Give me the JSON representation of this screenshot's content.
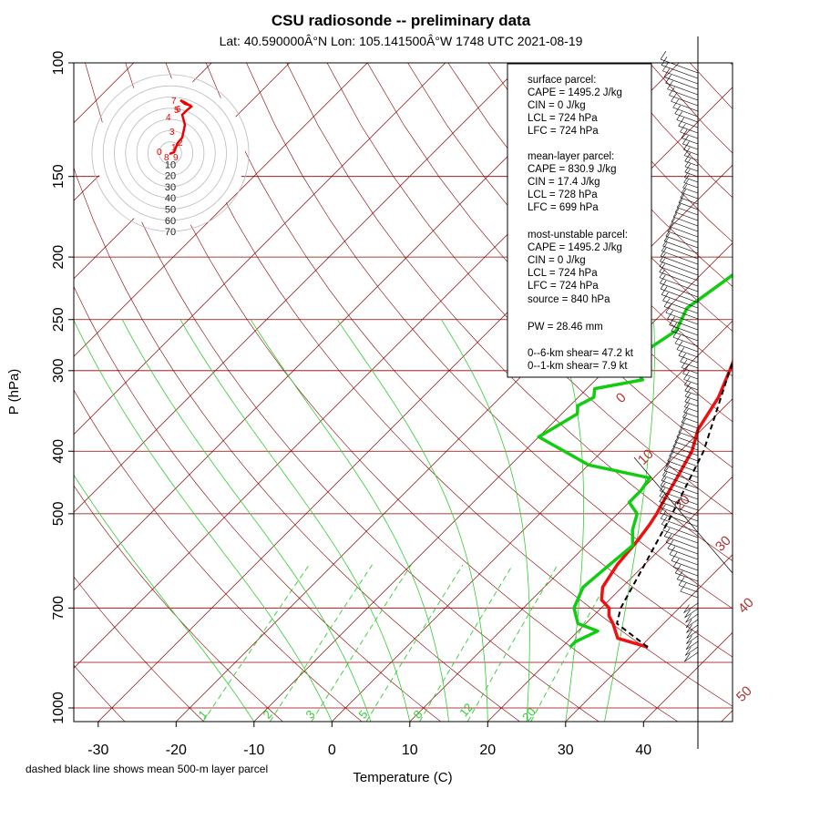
{
  "chart_data": {
    "type": "line",
    "title": "CSU radiosonde -- preliminary data",
    "subtitle": "Lat: 40.590000Â°N Lon: 105.141500Â°W    1748 UTC  2021-08-19",
    "xlabel": "Temperature (C)",
    "ylabel": "P (hPa)",
    "footnote": "dashed black line shows mean 500-m layer parcel",
    "x_ticks": [
      "-30",
      "-20",
      "-10",
      "0",
      "10",
      "20",
      "30",
      "40"
    ],
    "y_ticks": [
      "100",
      "150",
      "200",
      "250",
      "300",
      "400",
      "500",
      "700",
      "1000"
    ],
    "isotherm_labels": [
      "0",
      "10",
      "20",
      "30",
      "40",
      "50"
    ],
    "mixing_ratio_labels": [
      "1",
      "2",
      "3",
      "5",
      "8",
      "12",
      "20"
    ],
    "series": [
      {
        "name": "temperature",
        "color": "#ee1111",
        "points": [
          [
            805,
            31
          ],
          [
            780,
            26
          ],
          [
            740,
            23.5
          ],
          [
            720,
            22
          ],
          [
            700,
            21
          ],
          [
            680,
            19
          ],
          [
            650,
            17.5
          ],
          [
            600,
            16.5
          ],
          [
            550,
            16
          ],
          [
            520,
            15.5
          ],
          [
            500,
            15
          ],
          [
            470,
            14
          ],
          [
            440,
            13
          ],
          [
            400,
            11.5
          ],
          [
            370,
            9.5
          ],
          [
            330,
            8
          ],
          [
            300,
            6
          ],
          [
            280,
            4.5
          ],
          [
            250,
            3.5
          ],
          [
            220,
            3
          ],
          [
            200,
            3
          ],
          [
            180,
            2.5
          ],
          [
            160,
            2
          ],
          [
            145,
            2
          ],
          [
            130,
            2
          ],
          [
            120,
            2.5
          ],
          [
            115,
            4
          ],
          [
            108,
            5
          ],
          [
            103,
            6
          ],
          [
            100,
            7
          ]
        ]
      },
      {
        "name": "dewpoint",
        "color": "#11cc11",
        "points": [
          [
            805,
            21
          ],
          [
            790,
            21
          ],
          [
            760,
            22.5
          ],
          [
            740,
            19
          ],
          [
            700,
            16.5
          ],
          [
            650,
            15
          ],
          [
            600,
            15.5
          ],
          [
            560,
            16
          ],
          [
            530,
            14
          ],
          [
            500,
            12.5
          ],
          [
            480,
            10
          ],
          [
            460,
            10
          ],
          [
            440,
            9.5
          ],
          [
            420,
            0
          ],
          [
            380,
            -10
          ],
          [
            350,
            -8
          ],
          [
            340,
            -9
          ],
          [
            330,
            -8
          ],
          [
            320,
            -9
          ],
          [
            310,
            -4
          ],
          [
            300,
            -6
          ],
          [
            290,
            -8
          ],
          [
            260,
            -6
          ],
          [
            240,
            -7.5
          ],
          [
            200,
            -5
          ],
          [
            180,
            -3
          ],
          [
            150,
            4
          ],
          [
            130,
            10
          ],
          [
            115,
            15
          ],
          [
            108,
            16
          ],
          [
            100,
            18
          ]
        ]
      },
      {
        "name": "mean 500-m layer parcel",
        "color": "#000000",
        "points": [
          [
            805,
            31
          ],
          [
            740,
            24
          ],
          [
            700,
            22.5
          ],
          [
            600,
            20
          ],
          [
            500,
            17
          ],
          [
            400,
            13
          ],
          [
            300,
            6
          ],
          [
            250,
            2
          ],
          [
            200,
            -4
          ],
          [
            150,
            -12
          ],
          [
            145,
            -13
          ]
        ]
      }
    ],
    "wind_barbs": "present (right margin)"
  },
  "info_box": {
    "surface": [
      "surface parcel:",
      "CAPE = 1495.2 J/kg",
      "CIN = 0 J/kg",
      "LCL = 724 hPa",
      "LFC = 724 hPa"
    ],
    "mean_layer": [
      "mean-layer parcel:",
      "CAPE = 830.9 J/kg",
      "CIN = 17.4 J/kg",
      "LCL = 728 hPa",
      "LFC = 699 hPa"
    ],
    "most_unstable": [
      "most-unstable parcel:",
      "CAPE = 1495.2 J/kg",
      "CIN = 0 J/kg",
      "LCL = 724 hPa",
      "LFC = 724 hPa",
      "source = 840 hPa"
    ],
    "pw": "PW =  28.46 mm",
    "shear": [
      "0--6-km shear= 47.2 kt",
      "0--1-km shear= 7.9 kt"
    ]
  },
  "hodograph": {
    "ring_labels": [
      "10",
      "20",
      "30",
      "40",
      "50",
      "60",
      "70"
    ],
    "point_labels": [
      "0",
      "1",
      "2",
      "3",
      "4",
      "5",
      "6",
      "7",
      "8",
      "9"
    ]
  }
}
